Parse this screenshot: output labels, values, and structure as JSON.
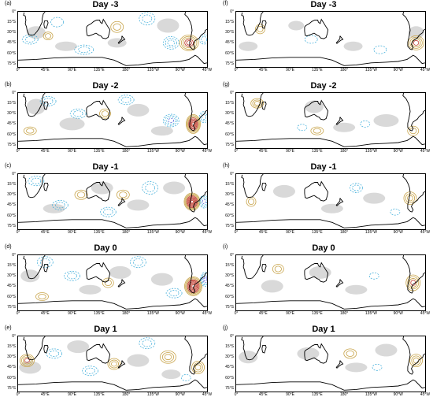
{
  "figure": {
    "x_ticks": [
      "0°",
      "45°E",
      "90°E",
      "135°E",
      "180°",
      "135°W",
      "90°W",
      "45°W"
    ],
    "y_ticks": [
      "0°",
      "15°S",
      "30°S",
      "45°S",
      "60°S",
      "75°S"
    ],
    "colors": {
      "positive_contour": "#c8a44a",
      "strong_contour": "#c0392b",
      "negative_contour": "#35a9d8",
      "strong_negative": "#4a56d8",
      "shading": "#d9d9d9",
      "coast": "#000000"
    },
    "panels": [
      {
        "id": "a",
        "label": "(a)",
        "title": "Day -3"
      },
      {
        "id": "f",
        "label": "(f)",
        "title": "Day -3"
      },
      {
        "id": "b",
        "label": "(b)",
        "title": "Day -2"
      },
      {
        "id": "g",
        "label": "(g)",
        "title": "Day -2"
      },
      {
        "id": "c",
        "label": "(c)",
        "title": "Day -1"
      },
      {
        "id": "h",
        "label": "(h)",
        "title": "Day -1"
      },
      {
        "id": "d",
        "label": "(d)",
        "title": "Day 0"
      },
      {
        "id": "i",
        "label": "(i)",
        "title": "Day 0"
      },
      {
        "id": "e",
        "label": "(e)",
        "title": "Day 1"
      },
      {
        "id": "j",
        "label": "(j)",
        "title": "Day 1"
      }
    ]
  }
}
